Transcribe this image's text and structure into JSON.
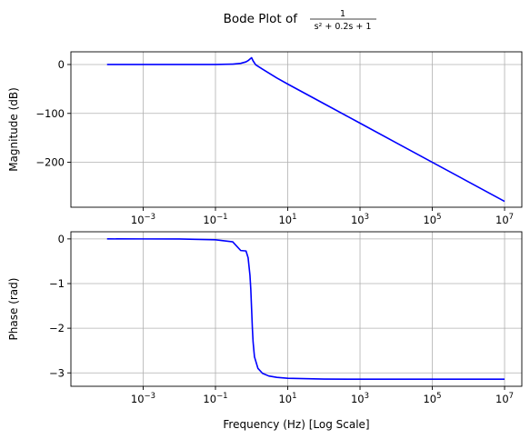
{
  "title": {
    "prefix": "Bode Plot of",
    "numerator": "1",
    "denominator": "s² + 0.2s + 1"
  },
  "colors": {
    "series": "#0000ff",
    "grid": "#b0b0b0"
  },
  "chart_data": [
    {
      "type": "line",
      "scale_x": "log",
      "xlabel": "",
      "ylabel": "Magnitude (dB)",
      "grid": true,
      "xlim": [
        1e-05,
        30000000
      ],
      "ylim": [
        -292,
        26
      ],
      "x_ticks": [
        {
          "value": 0.001,
          "base": "10",
          "exp": "−3"
        },
        {
          "value": 0.1,
          "base": "10",
          "exp": "−1"
        },
        {
          "value": 10,
          "base": "10",
          "exp": "1"
        },
        {
          "value": 1000,
          "base": "10",
          "exp": "3"
        },
        {
          "value": 100000,
          "base": "10",
          "exp": "5"
        },
        {
          "value": 10000000,
          "base": "10",
          "exp": "7"
        }
      ],
      "y_ticks": [
        {
          "value": 0,
          "label": "0"
        },
        {
          "value": -100,
          "label": "−100"
        },
        {
          "value": -200,
          "label": "−200"
        }
      ],
      "series": [
        {
          "x": [
            0.0001,
            0.001,
            0.01,
            0.1,
            0.3,
            0.5,
            0.7,
            0.8,
            0.9,
            1.0,
            1.1,
            1.3,
            2,
            5,
            10,
            100,
            1000,
            10000,
            100000,
            1000000,
            10000000
          ],
          "y": [
            0,
            0,
            0,
            0.1,
            0.8,
            2.4,
            5.4,
            7.9,
            11.2,
            14.0,
            7.4,
            -0.7,
            -9.5,
            -27.6,
            -40,
            -80,
            -120,
            -160,
            -200,
            -240,
            -280
          ]
        }
      ]
    },
    {
      "type": "line",
      "scale_x": "log",
      "xlabel": "Frequency (Hz) [Log Scale]",
      "ylabel": "Phase (rad)",
      "grid": true,
      "xlim": [
        1e-05,
        30000000
      ],
      "ylim": [
        -3.3,
        0.16
      ],
      "x_ticks": [
        {
          "value": 0.001,
          "base": "10",
          "exp": "−3"
        },
        {
          "value": 0.1,
          "base": "10",
          "exp": "−1"
        },
        {
          "value": 10,
          "base": "10",
          "exp": "1"
        },
        {
          "value": 1000,
          "base": "10",
          "exp": "3"
        },
        {
          "value": 100000,
          "base": "10",
          "exp": "5"
        },
        {
          "value": 10000000,
          "base": "10",
          "exp": "7"
        }
      ],
      "y_ticks": [
        {
          "value": 0,
          "label": "0"
        },
        {
          "value": -1,
          "label": "−1"
        },
        {
          "value": -2,
          "label": "−2"
        },
        {
          "value": -3,
          "label": "−3"
        }
      ],
      "series": [
        {
          "x": [
            0.0001,
            0.001,
            0.01,
            0.1,
            0.3,
            0.5,
            0.7,
            0.8,
            0.9,
            0.95,
            1.0,
            1.05,
            1.1,
            1.2,
            1.5,
            2,
            3,
            5,
            10,
            100,
            1000,
            10000,
            100000,
            1000000,
            10000000
          ],
          "y": [
            0,
            -0.0002,
            -0.002,
            -0.02,
            -0.066,
            -0.26,
            -0.27,
            -0.42,
            -0.81,
            -1.13,
            -1.571,
            -2.0,
            -2.31,
            -2.64,
            -2.9,
            -3.01,
            -3.07,
            -3.1,
            -3.121,
            -3.139,
            -3.1414,
            -3.1416,
            -3.1416,
            -3.1416,
            -3.1416
          ]
        }
      ]
    }
  ]
}
